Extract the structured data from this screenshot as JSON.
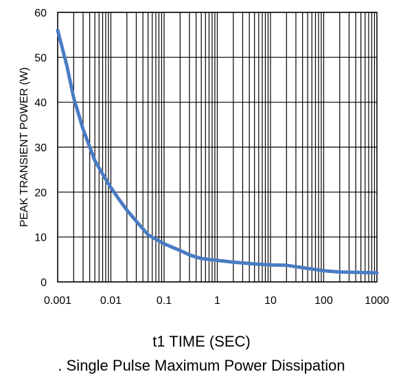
{
  "chart_data": {
    "type": "line",
    "title": "",
    "xlabel": "t1 TIME (SEC)",
    "ylabel": "PEAK TRANSIENT POWER (W)",
    "x_scale": "log",
    "xlim": [
      0.001,
      1000
    ],
    "ylim": [
      0,
      60
    ],
    "x_ticks": [
      "0.001",
      "0.01",
      "0.1",
      "1",
      "10",
      "100",
      "1000"
    ],
    "y_ticks": [
      "0",
      "10",
      "20",
      "30",
      "40",
      "50",
      "60"
    ],
    "grid": true,
    "series_color": "#4a7cc4",
    "series": [
      {
        "x": [
          0.001,
          0.0015,
          0.002,
          0.003,
          0.005,
          0.007,
          0.01,
          0.015,
          0.02,
          0.03,
          0.05,
          0.07,
          0.1,
          0.2,
          0.3,
          0.5,
          1,
          2,
          5,
          10,
          20,
          50,
          100,
          200,
          500,
          1000
        ],
        "y": [
          56,
          48,
          41,
          34,
          27,
          24,
          21,
          18,
          16,
          13.5,
          10.5,
          9.5,
          8.5,
          7,
          6,
          5.2,
          4.8,
          4.4,
          4.0,
          3.8,
          3.7,
          3.0,
          2.5,
          2.2,
          2.1,
          2.0
        ]
      }
    ]
  },
  "caption": ". Single Pulse Maximum Power Dissipation"
}
